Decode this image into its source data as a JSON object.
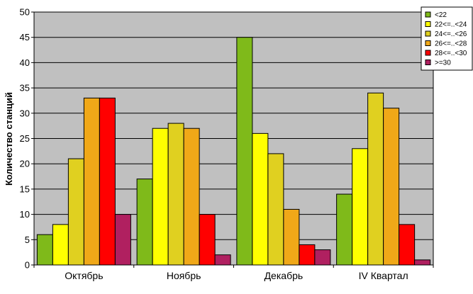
{
  "chart_data": {
    "type": "bar",
    "title": "",
    "xlabel": "",
    "ylabel": "Количество станций",
    "ylim": [
      0,
      50
    ],
    "yticks": [
      0,
      5,
      10,
      15,
      20,
      25,
      30,
      35,
      40,
      45,
      50
    ],
    "grid": true,
    "legend_position": "top-right",
    "plot_background": "#c0c0c0",
    "categories": [
      "Октябрь",
      "Ноябрь",
      "Декабрь",
      "IV Квартал"
    ],
    "series": [
      {
        "name": "<22",
        "color": "#7fba1a",
        "values": [
          6,
          17,
          45,
          14
        ]
      },
      {
        "name": "22<=..<24",
        "color": "#ffff00",
        "values": [
          8,
          27,
          26,
          23
        ]
      },
      {
        "name": "24<=..<26",
        "color": "#e0d020",
        "values": [
          21,
          28,
          22,
          34
        ]
      },
      {
        "name": "26<=..<28",
        "color": "#f0a818",
        "values": [
          33,
          27,
          11,
          31
        ]
      },
      {
        "name": "28<=..<30",
        "color": "#ff0000",
        "values": [
          33,
          10,
          4,
          8
        ]
      },
      {
        "name": ">=30",
        "color": "#b02060",
        "values": [
          10,
          2,
          3,
          1
        ]
      }
    ]
  }
}
